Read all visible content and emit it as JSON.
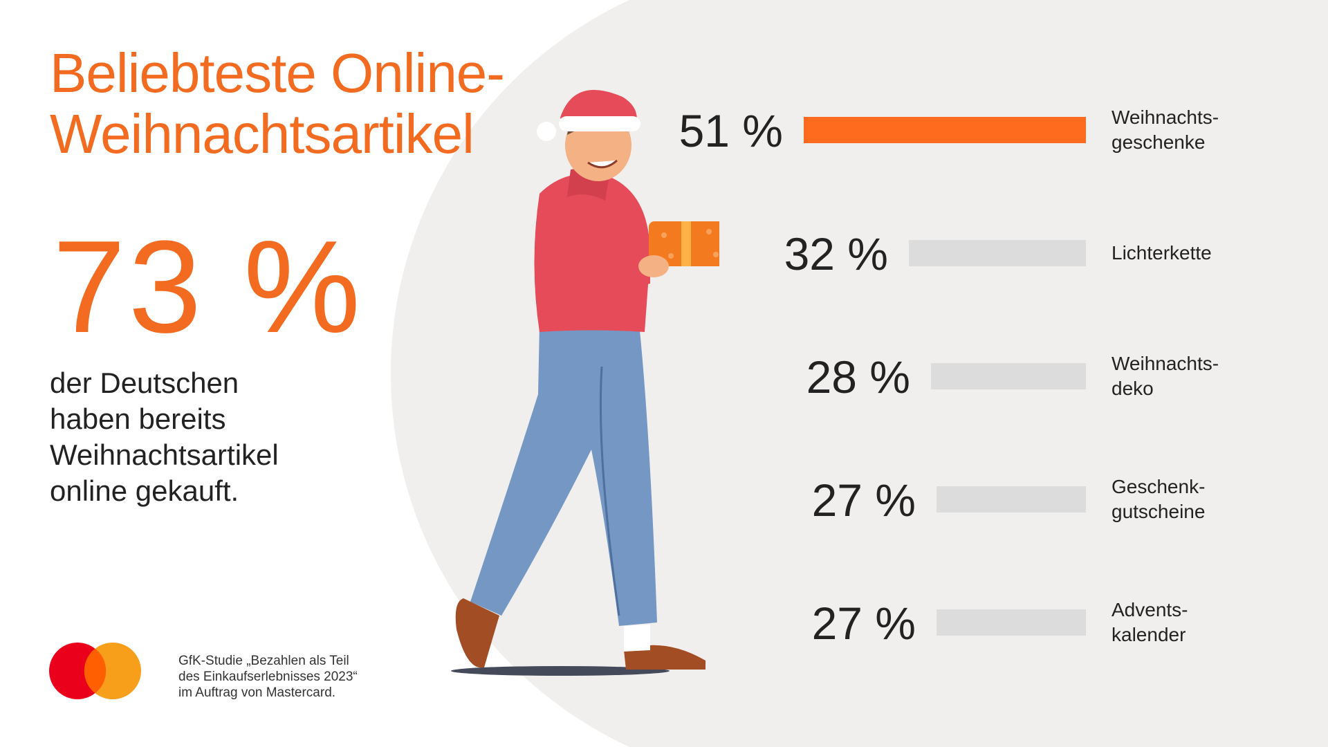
{
  "title_lines": [
    "Beliebteste Online-",
    "Weihnachtsartikel"
  ],
  "big_stat": "73 %",
  "big_stat_text": [
    "der Deutschen",
    "haben bereits",
    "Weihnachtsartikel",
    "online gekauft."
  ],
  "source_lines": [
    "GfK-Studie „Bezahlen als Teil",
    "des Einkaufserlebnisses 2023“",
    "im Auftrag von Mastercard."
  ],
  "colors": {
    "accent": "#f26b21",
    "bar_highlight": "#ff6b1e",
    "bar_default": "#dcdcdc",
    "background_shape": "#f1efed",
    "text": "#222222"
  },
  "icons": [
    "mastercard-logo-icon",
    "santa-hat-person-illustration"
  ],
  "chart_data": {
    "type": "bar",
    "orientation": "horizontal",
    "categories": [
      [
        "Weihnachts-",
        "geschenke"
      ],
      [
        "Lichterkette"
      ],
      [
        "Weihnachts-",
        "deko"
      ],
      [
        "Geschenk-",
        "gutscheine"
      ],
      [
        "Advents-",
        "kalender"
      ]
    ],
    "values": [
      51,
      32,
      28,
      27,
      27
    ],
    "value_labels": [
      "51 %",
      "32 %",
      "28 %",
      "27 %",
      "27 %"
    ],
    "highlight_index": 0,
    "xlim": [
      0,
      51
    ],
    "grid": false
  }
}
